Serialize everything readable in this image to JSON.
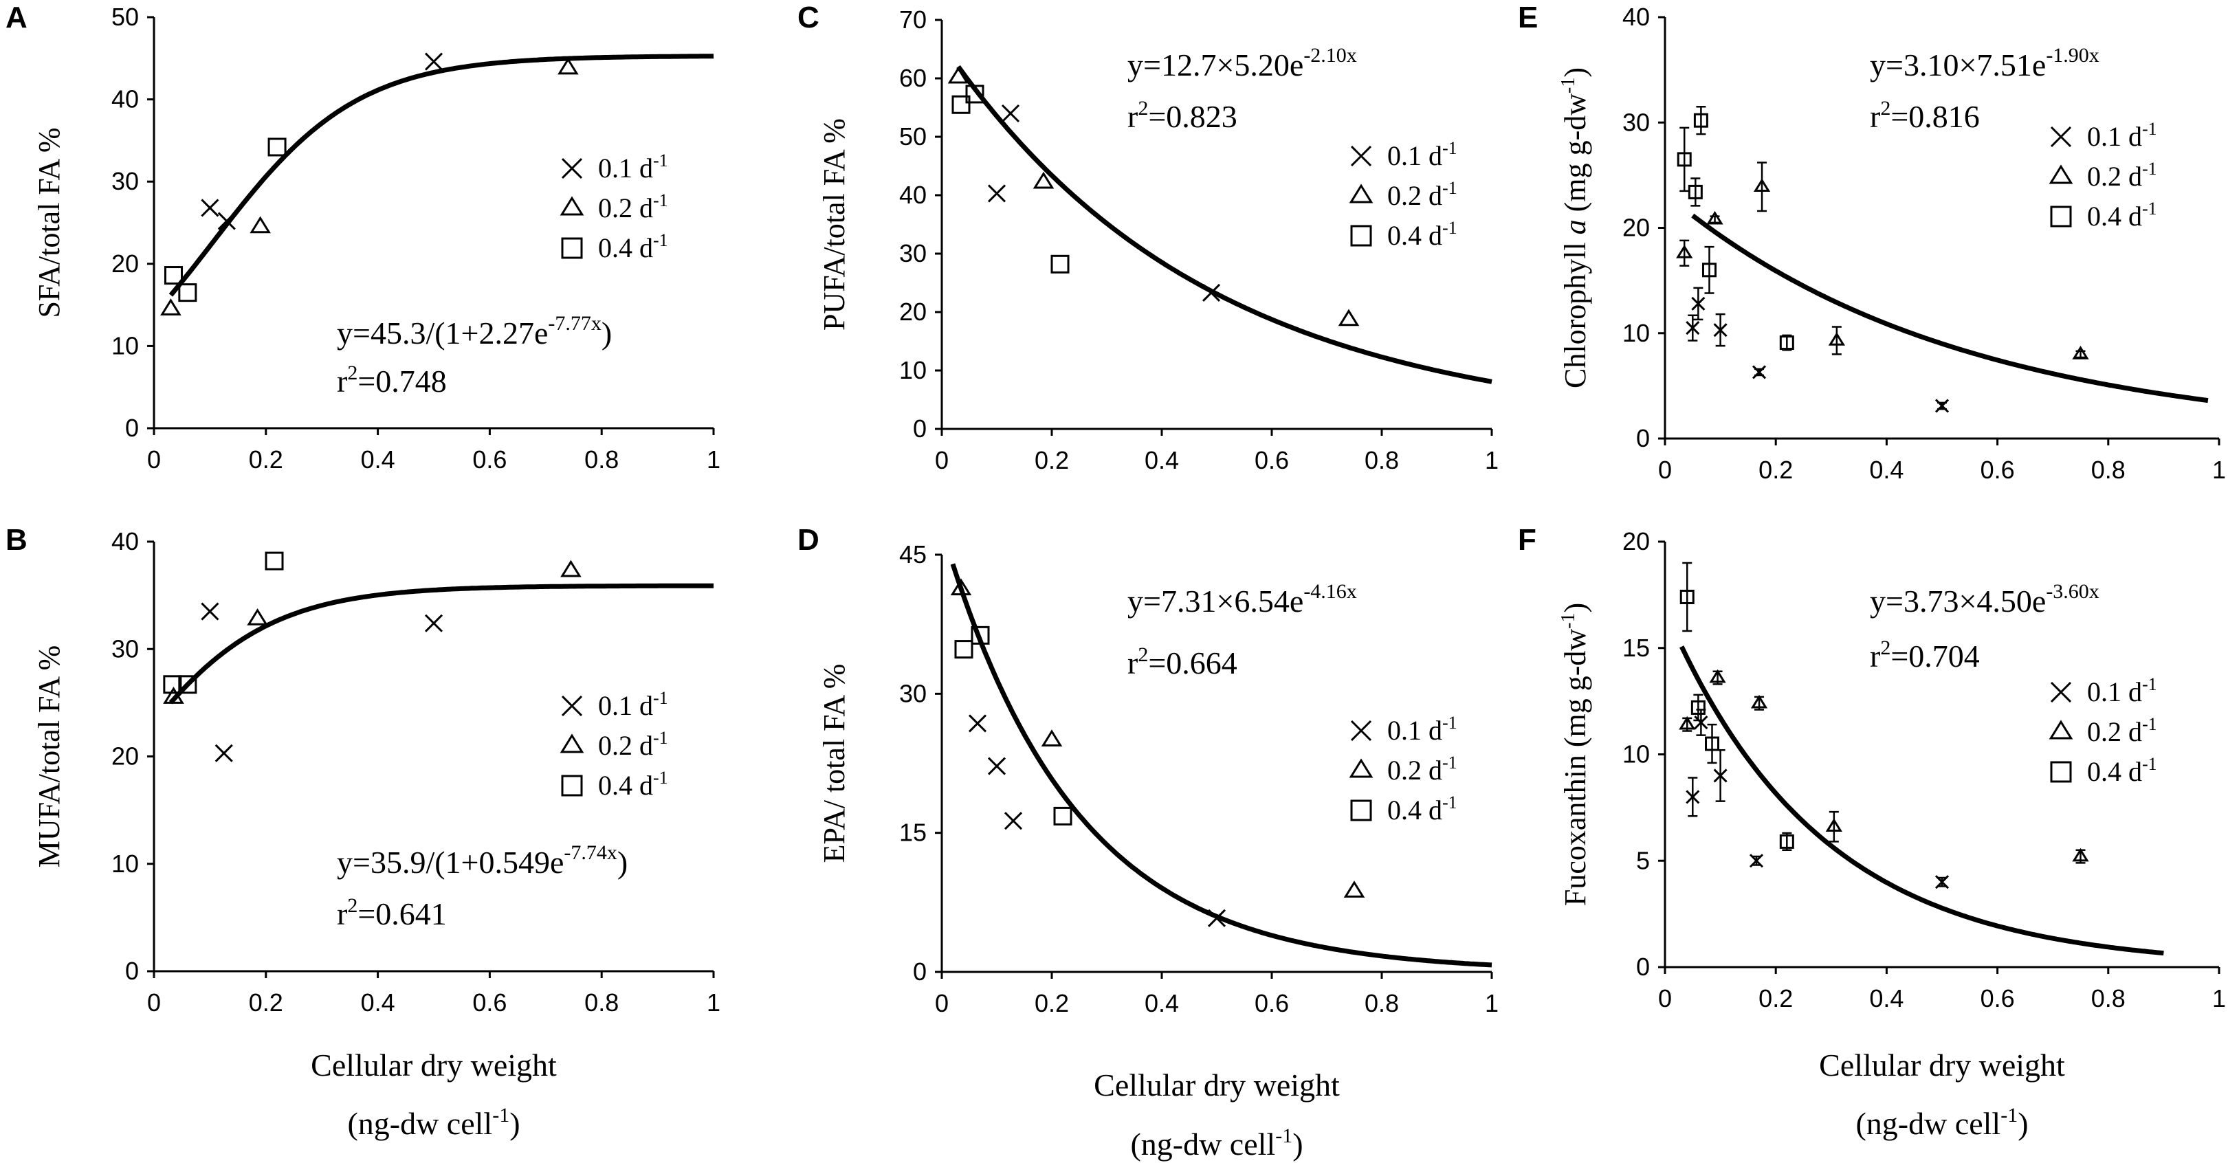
{
  "x_axis": {
    "label_line1": "Cellular dry weight",
    "label_line2_main": "(ng-dw cell",
    "label_line2_sup": "-1",
    "label_line2_end": ")"
  },
  "legend": {
    "unit": "d",
    "unit_sup": "-1",
    "items": [
      {
        "marker": "cross",
        "value": "0.1"
      },
      {
        "marker": "triangle",
        "value": "0.2"
      },
      {
        "marker": "square",
        "value": "0.4"
      }
    ]
  },
  "chart_data": [
    {
      "id": "A",
      "type": "scatter",
      "letter": "A",
      "ylabel": "SFA/total FA %",
      "xlim": [
        0,
        1
      ],
      "ylim": [
        0,
        50
      ],
      "xticks": [
        "0",
        "0.2",
        "0.4",
        "0.6",
        "0.8",
        "1"
      ],
      "yticks": [
        "0",
        "10",
        "20",
        "30",
        "40",
        "50"
      ],
      "equation_main": "y=45.3/(1+2.27e",
      "equation_sup": "-7.77x",
      "equation_end": ")",
      "r2": "=0.748",
      "fit": {
        "model": "logistic",
        "a": 45.3,
        "b": 2.27,
        "k": 7.77,
        "x_from": 0.03,
        "x_to": 1.0
      },
      "series": [
        {
          "name": "0.1 d-1",
          "marker": "cross",
          "points": [
            [
              0.1,
              26.8
            ],
            [
              0.13,
              25.2
            ],
            [
              0.5,
              44.6
            ]
          ]
        },
        {
          "name": "0.2 d-1",
          "marker": "triangle",
          "points": [
            [
              0.03,
              14.5
            ],
            [
              0.19,
              24.5
            ],
            [
              0.74,
              43.8
            ]
          ]
        },
        {
          "name": "0.4 d-1",
          "marker": "square",
          "points": [
            [
              0.035,
              18.6
            ],
            [
              0.06,
              16.5
            ],
            [
              0.22,
              34.2
            ]
          ]
        }
      ]
    },
    {
      "id": "B",
      "type": "scatter",
      "letter": "B",
      "ylabel": "MUFA/total FA %",
      "xlim": [
        0,
        1
      ],
      "ylim": [
        0,
        40
      ],
      "xticks": [
        "0",
        "0.2",
        "0.4",
        "0.6",
        "0.8",
        "1"
      ],
      "yticks": [
        "0",
        "10",
        "20",
        "30",
        "40"
      ],
      "equation_main": "y=35.9/(1+0.549e",
      "equation_sup": "-7.74x",
      "equation_end": ")",
      "r2": "=0.641",
      "fit": {
        "model": "logistic",
        "a": 35.9,
        "b": 0.549,
        "k": 7.74,
        "x_from": 0.03,
        "x_to": 1.0
      },
      "series": [
        {
          "name": "0.1 d-1",
          "marker": "cross",
          "points": [
            [
              0.1,
              33.5
            ],
            [
              0.125,
              20.3
            ],
            [
              0.5,
              32.4
            ]
          ]
        },
        {
          "name": "0.2 d-1",
          "marker": "triangle",
          "points": [
            [
              0.035,
              25.5
            ],
            [
              0.185,
              32.8
            ],
            [
              0.745,
              37.3
            ]
          ]
        },
        {
          "name": "0.4 d-1",
          "marker": "square",
          "points": [
            [
              0.033,
              26.7
            ],
            [
              0.06,
              26.7
            ],
            [
              0.215,
              38.2
            ]
          ]
        }
      ]
    },
    {
      "id": "C",
      "type": "scatter",
      "letter": "C",
      "ylabel": "PUFA/total FA %",
      "xlim": [
        0,
        1
      ],
      "ylim": [
        0,
        70
      ],
      "xticks": [
        "0",
        "0.2",
        "0.4",
        "0.6",
        "0.8",
        "1"
      ],
      "yticks": [
        "0",
        "10",
        "20",
        "30",
        "40",
        "50",
        "60",
        "70"
      ],
      "equation_main": "y=12.7×5.20e",
      "equation_sup": "-2.10x",
      "equation_end": "",
      "r2": "=0.823",
      "fit": {
        "model": "exp",
        "a": 12.7,
        "b": 5.2,
        "k": 2.1,
        "x_from": 0.03,
        "x_to": 1.0
      },
      "series": [
        {
          "name": "0.1 d-1",
          "marker": "cross",
          "points": [
            [
              0.1,
              40.3
            ],
            [
              0.125,
              54.0
            ],
            [
              0.49,
              23.3
            ]
          ]
        },
        {
          "name": "0.2 d-1",
          "marker": "triangle",
          "points": [
            [
              0.03,
              60.2
            ],
            [
              0.185,
              42.2
            ],
            [
              0.74,
              18.7
            ]
          ]
        },
        {
          "name": "0.4 d-1",
          "marker": "square",
          "points": [
            [
              0.035,
              55.5
            ],
            [
              0.06,
              57.3
            ],
            [
              0.215,
              28.2
            ]
          ]
        }
      ]
    },
    {
      "id": "D",
      "type": "scatter",
      "letter": "D",
      "ylabel": "EPA/ total FA %",
      "xlim": [
        0,
        1
      ],
      "ylim": [
        0,
        45
      ],
      "xticks": [
        "0",
        "0.2",
        "0.4",
        "0.6",
        "0.8",
        "1"
      ],
      "yticks": [
        "0",
        "15",
        "30",
        "45"
      ],
      "equation_main": "y=7.31×6.54e",
      "equation_sup": "-4.16x",
      "equation_end": "",
      "r2": "=0.664",
      "fit": {
        "model": "exp",
        "a": 7.31,
        "b": 6.54,
        "k": 4.16,
        "x_from": 0.02,
        "x_to": 1.0
      },
      "series": [
        {
          "name": "0.1 d-1",
          "marker": "cross",
          "points": [
            [
              0.065,
              26.8
            ],
            [
              0.1,
              22.2
            ],
            [
              0.13,
              16.3
            ],
            [
              0.5,
              5.8
            ]
          ]
        },
        {
          "name": "0.2 d-1",
          "marker": "triangle",
          "points": [
            [
              0.035,
              41.3
            ],
            [
              0.2,
              25.0
            ],
            [
              0.75,
              8.7
            ]
          ]
        },
        {
          "name": "0.4 d-1",
          "marker": "square",
          "points": [
            [
              0.04,
              34.8
            ],
            [
              0.07,
              36.3
            ],
            [
              0.22,
              16.8
            ]
          ]
        }
      ]
    },
    {
      "id": "E",
      "type": "scatter",
      "letter": "E",
      "ylabel": "Chlorophyll a (mg g-dw-1)",
      "ylabel_pre": "Chlorophyll ",
      "ylabel_ital": "a",
      "ylabel_post": " (mg g-dw",
      "ylabel_sup": "-1",
      "ylabel_end": ")",
      "xlim": [
        0,
        1
      ],
      "ylim": [
        0,
        40
      ],
      "xticks": [
        "0",
        "0.2",
        "0.4",
        "0.6",
        "0.8",
        "1"
      ],
      "yticks": [
        "0",
        "10",
        "20",
        "30",
        "40"
      ],
      "equation_main": "y=3.10×7.51e",
      "equation_sup": "-1.90x",
      "equation_end": "",
      "r2": "=0.816",
      "fit": {
        "model": "exp",
        "a": 3.1,
        "b": 7.51,
        "k": 1.9,
        "x_from": 0.05,
        "x_to": 0.98
      },
      "series": [
        {
          "name": "0.1 d-1",
          "marker": "cross",
          "points": [
            [
              0.05,
              10.5,
              1.2
            ],
            [
              0.06,
              12.8,
              1.5
            ],
            [
              0.1,
              10.3,
              1.5
            ],
            [
              0.17,
              6.3,
              0.3
            ],
            [
              0.5,
              3.1,
              0.3
            ]
          ]
        },
        {
          "name": "0.2 d-1",
          "marker": "triangle",
          "points": [
            [
              0.035,
              17.6,
              1.2
            ],
            [
              0.09,
              20.8,
              0.3
            ],
            [
              0.175,
              23.9,
              2.3
            ],
            [
              0.31,
              9.3,
              1.3
            ],
            [
              0.75,
              8.0,
              0.3
            ]
          ]
        },
        {
          "name": "0.4 d-1",
          "marker": "square",
          "points": [
            [
              0.035,
              26.5,
              3.0
            ],
            [
              0.055,
              23.4,
              1.3
            ],
            [
              0.065,
              30.2,
              1.3
            ],
            [
              0.08,
              16.0,
              2.2
            ],
            [
              0.22,
              9.1,
              0.7
            ]
          ]
        }
      ]
    },
    {
      "id": "F",
      "type": "scatter",
      "letter": "F",
      "ylabel": "Fucoxanthin (mg g-dw-1)",
      "ylabel_pre": "Fucoxanthin ",
      "ylabel_ital": "",
      "ylabel_post": " (mg g-dw",
      "ylabel_sup": "-1",
      "ylabel_end": ")",
      "xlim": [
        0,
        1
      ],
      "ylim": [
        0,
        20
      ],
      "xticks": [
        "0",
        "0.2",
        "0.4",
        "0.6",
        "0.8",
        "1"
      ],
      "yticks": [
        "0",
        "5",
        "10",
        "15",
        "20"
      ],
      "equation_main": "y=3.73×4.50e",
      "equation_sup": "-3.60x",
      "equation_end": "",
      "r2": "=0.704",
      "fit": {
        "model": "exp",
        "a": 3.73,
        "b": 4.5,
        "k": 3.6,
        "x_from": 0.03,
        "x_to": 0.9
      },
      "series": [
        {
          "name": "0.1 d-1",
          "marker": "cross",
          "points": [
            [
              0.05,
              8.0,
              0.9
            ],
            [
              0.065,
              11.5,
              0.6
            ],
            [
              0.1,
              9.0,
              1.2
            ],
            [
              0.165,
              5.0,
              0.2
            ],
            [
              0.5,
              4.0,
              0.2
            ]
          ]
        },
        {
          "name": "0.2 d-1",
          "marker": "triangle",
          "points": [
            [
              0.04,
              11.4,
              0.3
            ],
            [
              0.095,
              13.6,
              0.3
            ],
            [
              0.17,
              12.4,
              0.3
            ],
            [
              0.305,
              6.6,
              0.7
            ],
            [
              0.75,
              5.2,
              0.3
            ]
          ]
        },
        {
          "name": "0.4 d-1",
          "marker": "square",
          "points": [
            [
              0.04,
              17.4,
              1.6
            ],
            [
              0.06,
              12.2,
              0.6
            ],
            [
              0.085,
              10.5,
              0.9
            ],
            [
              0.22,
              5.9,
              0.4
            ]
          ]
        }
      ]
    }
  ]
}
